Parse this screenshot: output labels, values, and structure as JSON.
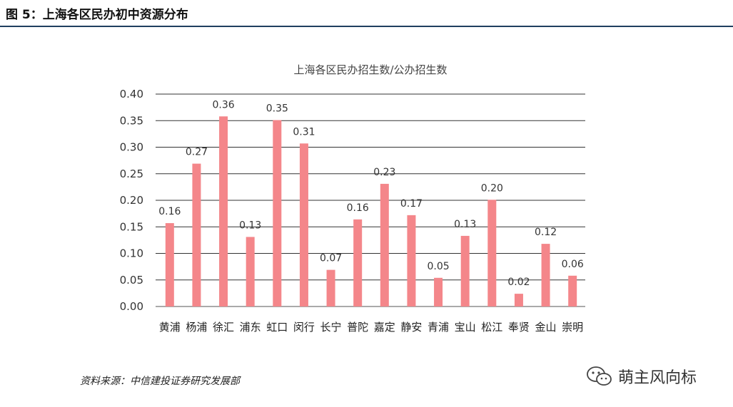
{
  "figure": {
    "title": "图 5：上海各区民办初中资源分布"
  },
  "source": "资料来源：中信建投证券研究发展部",
  "watermark": {
    "text": "萌主风向标",
    "icon": "wechat-icon"
  },
  "chart_data": {
    "type": "bar",
    "title": "上海各区民办招生数/公办招生数",
    "xlabel": "",
    "ylabel": "",
    "ylim": [
      0,
      0.4
    ],
    "yticks": [
      "0.00",
      "0.05",
      "0.10",
      "0.15",
      "0.20",
      "0.25",
      "0.30",
      "0.35",
      "0.40"
    ],
    "grid": true,
    "categories": [
      "黄浦",
      "杨浦",
      "徐汇",
      "浦东",
      "虹口",
      "闵行",
      "长宁",
      "普陀",
      "嘉定",
      "静安",
      "青浦",
      "宝山",
      "松江",
      "奉贤",
      "金山",
      "崇明"
    ],
    "values": [
      0.157,
      0.269,
      0.358,
      0.131,
      0.351,
      0.307,
      0.069,
      0.164,
      0.231,
      0.172,
      0.054,
      0.133,
      0.201,
      0.024,
      0.118,
      0.058
    ],
    "labels": [
      "0.16",
      "0.27",
      "0.36",
      "0.13",
      "0.35",
      "0.31",
      "0.07",
      "0.16",
      "0.23",
      "0.17",
      "0.05",
      "0.13",
      "0.20",
      "0.02",
      "0.12",
      "0.06"
    ],
    "bar_color": "#f4868a"
  }
}
